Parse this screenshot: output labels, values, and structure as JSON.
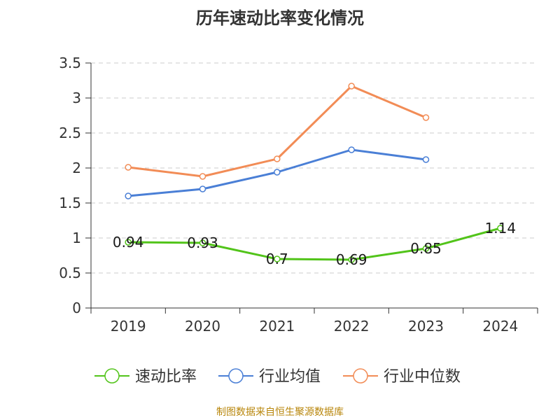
{
  "chart_data": {
    "type": "line",
    "title": "历年速动比率变化情况",
    "categories": [
      "2019",
      "2020",
      "2021",
      "2022",
      "2023",
      "2024"
    ],
    "y_tick_labels": [
      "0",
      "0.5",
      "1",
      "1.5",
      "2",
      "2.5",
      "3",
      "3.5"
    ],
    "ylim": [
      0,
      3.5
    ],
    "grid": true,
    "legend_position": "bottom",
    "series": [
      {
        "name": "速动比率",
        "color": "#52c41a",
        "values": [
          0.94,
          0.93,
          0.7,
          0.69,
          0.85,
          1.14
        ],
        "labels": [
          "0.94",
          "0.93",
          "0.7",
          "0.69",
          "0.85",
          "1.14"
        ]
      },
      {
        "name": "行业均值",
        "color": "#4a7fd6",
        "values": [
          1.6,
          1.7,
          1.94,
          2.26,
          2.12,
          null
        ]
      },
      {
        "name": "行业中位数",
        "color": "#f28c56",
        "values": [
          2.01,
          1.88,
          2.13,
          3.17,
          2.72,
          null
        ]
      }
    ]
  },
  "source_note": "制图数据来自恒生聚源数据库"
}
